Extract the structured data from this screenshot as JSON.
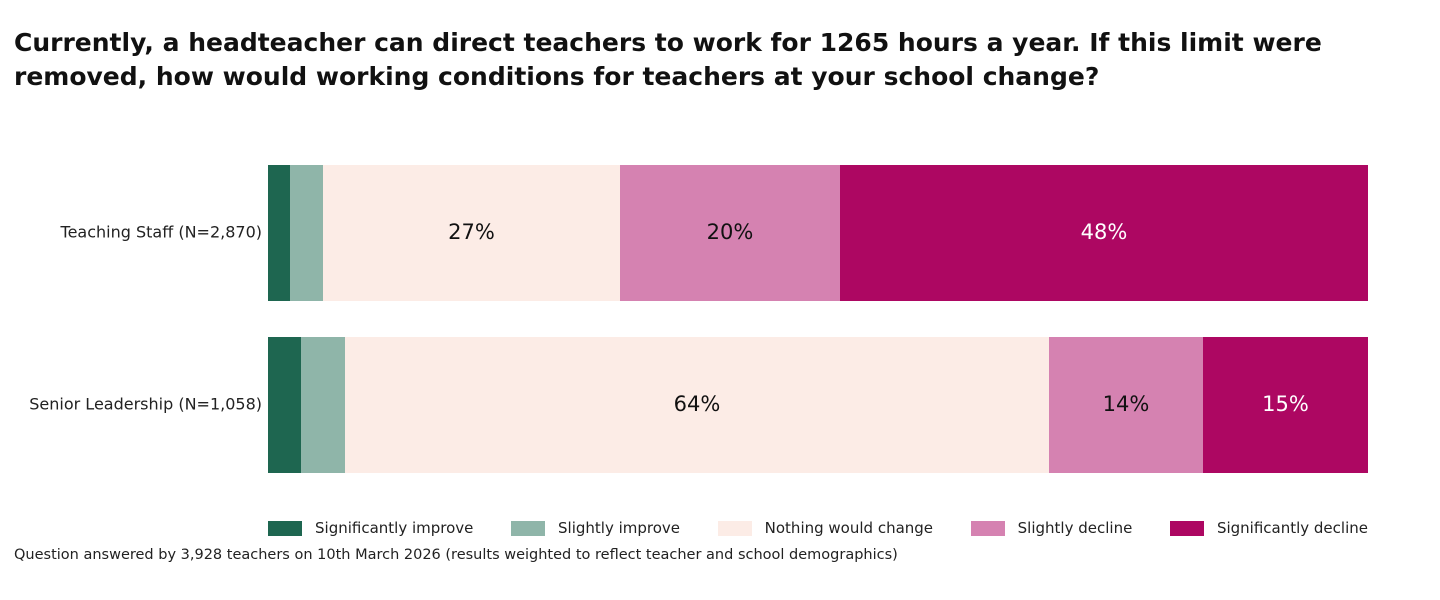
{
  "chart_data": {
    "type": "bar",
    "orientation": "horizontal",
    "stacked": true,
    "title": "Currently, a headteacher can direct teachers to work for 1265 hours a year. If this limit were removed, how would working conditions for teachers at your school change?",
    "categories": [
      "Teaching Staff (N=2,870)",
      "Senior Leadership (N=1,058)"
    ],
    "series": [
      {
        "name": "Significantly improve",
        "values": [
          2,
          3
        ],
        "labels": [
          "",
          ""
        ],
        "color": "#1e6650"
      },
      {
        "name": "Slightly improve",
        "values": [
          3,
          4
        ],
        "labels": [
          "",
          ""
        ],
        "color": "#8fb5a9"
      },
      {
        "name": "Nothing would change",
        "values": [
          27,
          64
        ],
        "labels": [
          "27%",
          "64%"
        ],
        "color": "#fcece6"
      },
      {
        "name": "Slightly decline",
        "values": [
          20,
          14
        ],
        "labels": [
          "20%",
          "14%"
        ],
        "color": "#d582b1"
      },
      {
        "name": "Significantly decline",
        "values": [
          48,
          15
        ],
        "labels": [
          "48%",
          "15%"
        ],
        "color": "#ad0762"
      }
    ],
    "xlim": [
      0,
      100
    ],
    "grid": false,
    "legend_position": "bottom"
  },
  "footnote": "Question answered by 3,928 teachers on 10th March 2026 (results weighted to reflect teacher and school demographics)",
  "colors": {
    "dark_label": "#111111",
    "light_label": "#ffffff"
  }
}
